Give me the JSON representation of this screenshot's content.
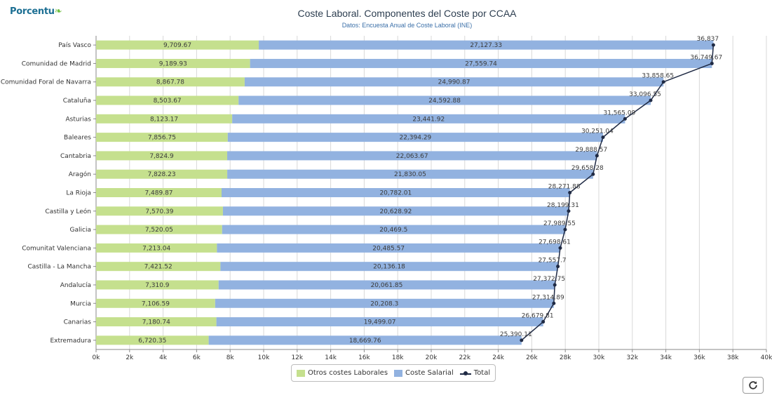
{
  "logo": {
    "text": "Porcentu"
  },
  "chart_data": {
    "type": "bar",
    "orientation": "horizontal",
    "stacked": true,
    "title": "Coste Laboral. Componentes del Coste por CCAA",
    "subtitle": "Datos: Encuesta Anual de Coste Laboral (INE)",
    "categories": [
      "País Vasco",
      "Comunidad de Madrid",
      "Comunidad Foral de Navarra",
      "Cataluña",
      "Asturias",
      "Baleares",
      "Cantabria",
      "Aragón",
      "La Rioja",
      "Castilla y León",
      "Galicia",
      "Comunitat Valenciana",
      "Castilla - La Mancha",
      "Andalucía",
      "Murcia",
      "Canarias",
      "Extremadura"
    ],
    "series": [
      {
        "name": "Otros costes Laborales",
        "type": "bar",
        "color": "#c5e08e",
        "values": [
          9709.67,
          9189.93,
          8867.78,
          8503.67,
          8123.17,
          7856.75,
          7824.9,
          7828.23,
          7489.87,
          7570.39,
          7520.05,
          7213.04,
          7421.52,
          7310.9,
          7106.59,
          7180.74,
          6720.35
        ],
        "labels": [
          "9,709.67",
          "9,189.93",
          "8,867.78",
          "8,503.67",
          "8,123.17",
          "7,856.75",
          "7,824.9",
          "7,828.23",
          "7,489.87",
          "7,570.39",
          "7,520.05",
          "7,213.04",
          "7,421.52",
          "7,310.9",
          "7,106.59",
          "7,180.74",
          "6,720.35"
        ]
      },
      {
        "name": "Coste Salarial",
        "type": "bar",
        "color": "#92b2e0",
        "values": [
          27127.33,
          27559.74,
          24990.87,
          24592.88,
          23441.92,
          22394.29,
          22063.67,
          21830.05,
          20782.01,
          20628.92,
          20469.5,
          20485.57,
          20136.18,
          20061.85,
          20208.3,
          19499.07,
          18669.76
        ],
        "labels": [
          "27,127.33",
          "27,559.74",
          "24,990.87",
          "24,592.88",
          "23,441.92",
          "22,394.29",
          "22,063.67",
          "21,830.05",
          "20,782.01",
          "20,628.92",
          "20,469.5",
          "20,485.57",
          "20,136.18",
          "20,061.85",
          "20,208.3",
          "19,499.07",
          "18,669.76"
        ]
      },
      {
        "name": "Total",
        "type": "line",
        "color": "#1f2a44",
        "values": [
          36837,
          36749.67,
          33858.65,
          33096.55,
          31565.09,
          30251.04,
          29888.57,
          29658.28,
          28271.88,
          28199.31,
          27989.55,
          27698.61,
          27557.7,
          27372.75,
          27314.89,
          26679.81,
          25390.11
        ],
        "labels": [
          "36,837",
          "36,749.67",
          "33,858.65",
          "33,096.55",
          "31,565.09",
          "30,251.04",
          "29,888.57",
          "29,658.28",
          "28,271.88",
          "28,199.31",
          "27,989.55",
          "27,698.61",
          "27,557.7",
          "27,372.75",
          "27,314.89",
          "26,679.81",
          "25,390.11"
        ]
      }
    ],
    "xlim": [
      0,
      40000
    ],
    "xticks": [
      "0k",
      "2k",
      "4k",
      "6k",
      "8k",
      "10k",
      "12k",
      "14k",
      "16k",
      "18k",
      "20k",
      "22k",
      "24k",
      "26k",
      "28k",
      "30k",
      "32k",
      "34k",
      "36k",
      "38k",
      "40k"
    ],
    "grid": true,
    "legend_position": "bottom"
  },
  "colors": {
    "grid": "#d8d8d8",
    "axis": "#8a8a8a",
    "text": "#333333",
    "line_marker": "#1f2a44"
  },
  "icons": {
    "refresh": "refresh-icon"
  }
}
